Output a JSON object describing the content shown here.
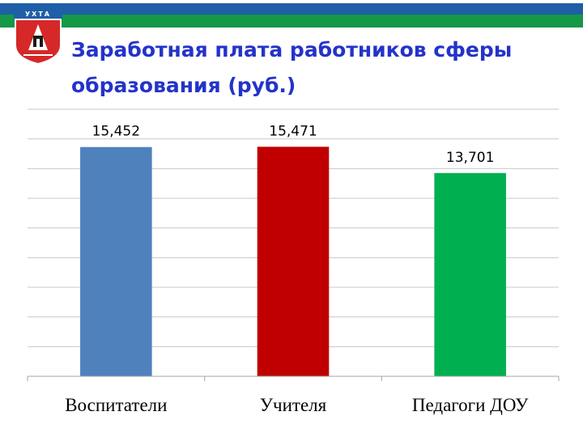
{
  "header": {
    "emblem_label": "УХТА",
    "title": "Заработная плата работников сферы образования (руб.)",
    "colors": {
      "blue": "#1f5fa8",
      "green": "#169848",
      "title": "#2433c9"
    }
  },
  "chart_data": {
    "type": "bar",
    "title": "Заработная плата работников сферы образования (руб.)",
    "categories": [
      "Воспитатели",
      "Учителя",
      "Педагоги ДОУ"
    ],
    "values": [
      15452,
      15471,
      13701
    ],
    "data_labels": [
      "15,452",
      "15,471",
      "13,701"
    ],
    "colors": [
      "#4f81bd",
      "#c00000",
      "#00b050"
    ],
    "ylim": [
      0,
      18000
    ],
    "grid": true,
    "xlabel": "",
    "ylabel": ""
  }
}
